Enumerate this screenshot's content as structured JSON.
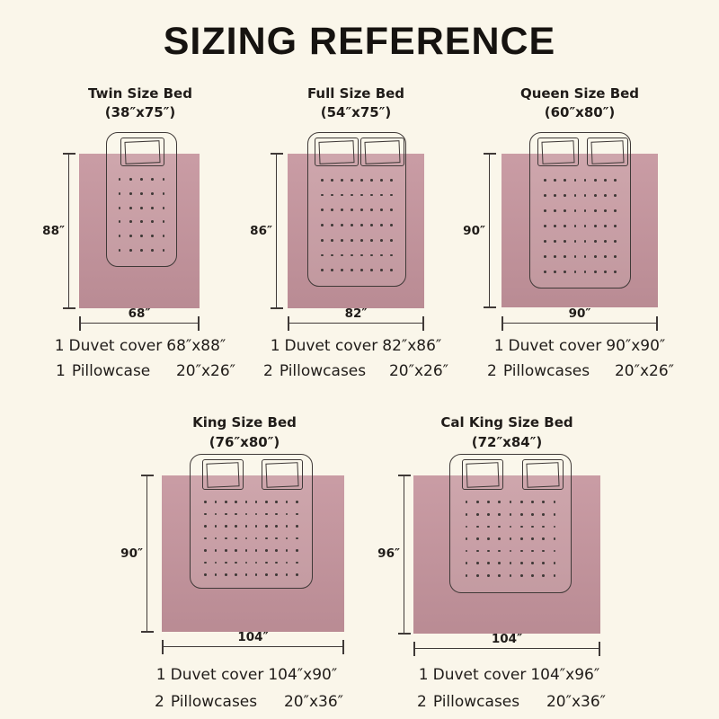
{
  "title": "SIZING REFERENCE",
  "colors": {
    "background": "#faf6ea",
    "duvet": "#c5949d",
    "line": "#3f3937",
    "text": "#201c19"
  },
  "beds": [
    {
      "name": "Twin Size Bed",
      "size": "(38″x75″)",
      "height_label": "88″",
      "width_label": "68″",
      "duvet_qty": "1",
      "duvet_label": "Duvet cover",
      "duvet_size": "68″x88″",
      "pillow_qty": "1",
      "pillow_label": "Pillowcase",
      "pillow_size": "20″x26″"
    },
    {
      "name": "Full Size Bed",
      "size": "(54″x75″)",
      "height_label": "86″",
      "width_label": "82″",
      "duvet_qty": "1",
      "duvet_label": "Duvet cover",
      "duvet_size": "82″x86″",
      "pillow_qty": "2",
      "pillow_label": "Pillowcases",
      "pillow_size": "20″x26″"
    },
    {
      "name": "Queen Size Bed",
      "size": "(60″x80″)",
      "height_label": "90″",
      "width_label": "90″",
      "duvet_qty": "1",
      "duvet_label": "Duvet cover",
      "duvet_size": "90″x90″",
      "pillow_qty": "2",
      "pillow_label": "Pillowcases",
      "pillow_size": "20″x26″"
    },
    {
      "name": "King Size Bed",
      "size": "(76″x80″)",
      "height_label": "90″",
      "width_label": "104″",
      "duvet_qty": "1",
      "duvet_label": "Duvet cover",
      "duvet_size": "104″x90″",
      "pillow_qty": "2",
      "pillow_label": "Pillowcases",
      "pillow_size": "20″x36″"
    },
    {
      "name": "Cal King Size Bed",
      "size": "(72″x84″)",
      "height_label": "96″",
      "width_label": "104″",
      "duvet_qty": "1",
      "duvet_label": "Duvet cover",
      "duvet_size": "104″x96″",
      "pillow_qty": "2",
      "pillow_label": "Pillowcases",
      "pillow_size": "20″x36″"
    }
  ]
}
